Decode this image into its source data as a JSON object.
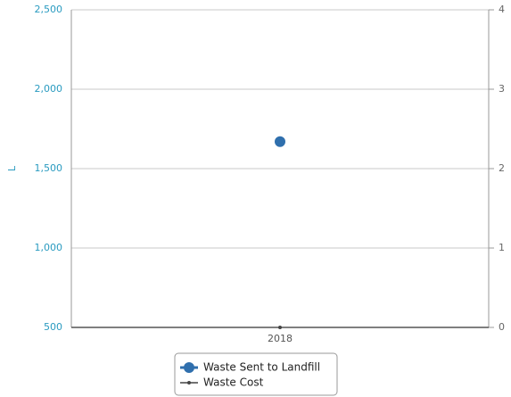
{
  "chart_data": {
    "type": "line",
    "categories": [
      "2018"
    ],
    "y_label": "L",
    "series": [
      {
        "name": "Waste Sent to Landfill",
        "color": "#2f6fad",
        "values": [
          1670
        ]
      },
      {
        "name": "Waste Cost",
        "color": "#444444",
        "values": [
          0
        ],
        "axis": "y2"
      }
    ],
    "ylim": [
      500,
      2500
    ],
    "yticks": [
      500,
      {
        "value": 1000,
        "label": "1,000"
      },
      {
        "value": 1500,
        "label": "1,500"
      },
      {
        "value": 2000,
        "label": "2,000"
      },
      {
        "value": 2500,
        "label": "2,500"
      }
    ],
    "y2lim": [
      0,
      4
    ],
    "y2ticks": [
      0,
      1,
      2,
      3,
      4
    ],
    "grid": true,
    "legend": "bottom"
  }
}
